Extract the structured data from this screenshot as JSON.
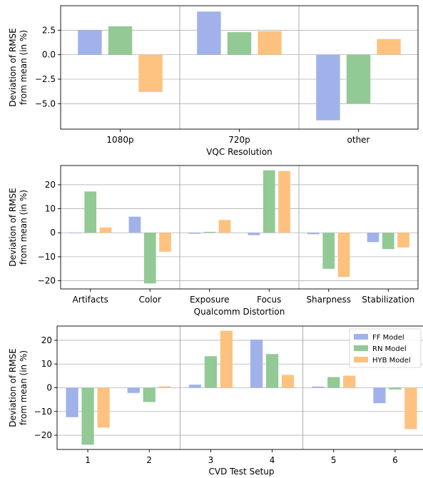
{
  "colors": {
    "ff": "#a1b1ea",
    "rn": "#92c995",
    "hyb": "#fdc27f",
    "grid": "#b0b0b0",
    "separator": "#999999",
    "axis": "#000000"
  },
  "chart_data": [
    {
      "type": "bar",
      "xlabel": "VQC Resolution",
      "ylabel": [
        "Deviation of RMSE",
        "from mean (in %)"
      ],
      "categories": [
        "1080p",
        "720p",
        "other"
      ],
      "series": [
        {
          "name": "FF Model",
          "color": "#a1b1ea",
          "values": [
            2.5,
            4.4,
            -6.7
          ]
        },
        {
          "name": "RN Model",
          "color": "#92c995",
          "values": [
            2.9,
            2.3,
            -5.0
          ]
        },
        {
          "name": "HYB Model",
          "color": "#fdc27f",
          "values": [
            -3.8,
            2.4,
            1.6
          ]
        }
      ],
      "ylim": [
        -7.6,
        5.0
      ],
      "yticks": [
        2.5,
        0.0,
        -2.5,
        -5.0
      ],
      "ytick_labels": [
        "2.5",
        "0.0",
        "−2.5",
        "−5.0"
      ],
      "grid": true
    },
    {
      "type": "bar",
      "xlabel": "Qualcomm Distortion",
      "ylabel": [
        "Deviation of RMSE",
        "from mean (in %)"
      ],
      "categories": [
        "Artifacts",
        "Color",
        "Exposure",
        "Focus",
        "Sharpness",
        "Stabilization"
      ],
      "series": [
        {
          "name": "FF Model",
          "color": "#a1b1ea",
          "values": [
            0.0,
            6.7,
            -0.4,
            -1.0,
            -0.6,
            -3.9
          ]
        },
        {
          "name": "RN Model",
          "color": "#92c995",
          "values": [
            17.2,
            -21.1,
            0.4,
            26.0,
            -15.0,
            -6.8
          ]
        },
        {
          "name": "HYB Model",
          "color": "#fdc27f",
          "values": [
            2.2,
            -7.9,
            5.3,
            25.7,
            -18.4,
            -6.1
          ]
        }
      ],
      "ylim": [
        -23.4,
        28.0
      ],
      "yticks": [
        20,
        10,
        0,
        -10,
        -20
      ],
      "ytick_labels": [
        "20",
        "10",
        "0",
        "−10",
        "−20"
      ],
      "grid": true
    },
    {
      "type": "bar",
      "xlabel": "CVD Test Setup",
      "ylabel": [
        "Deviation of RMSE",
        "from mean (in %)"
      ],
      "categories": [
        "1",
        "2",
        "3",
        "4",
        "5",
        "6"
      ],
      "series": [
        {
          "name": "FF Model",
          "color": "#a1b1ea",
          "values": [
            -12.4,
            -2.2,
            1.3,
            20.3,
            0.5,
            -6.5
          ]
        },
        {
          "name": "RN Model",
          "color": "#92c995",
          "values": [
            -24.0,
            -6.0,
            13.3,
            14.2,
            4.5,
            -0.7
          ]
        },
        {
          "name": "HYB Model",
          "color": "#fdc27f",
          "values": [
            -16.8,
            0.6,
            24.0,
            5.4,
            5.1,
            -17.4
          ]
        }
      ],
      "ylim": [
        -26.0,
        26.0
      ],
      "yticks": [
        20,
        10,
        0,
        -10,
        -20
      ],
      "ytick_labels": [
        "20",
        "10",
        "0",
        "−10",
        "−20"
      ],
      "legend": {
        "placement": "top-right",
        "entries": [
          "FF Model",
          "RN Model",
          "HYB Model"
        ]
      },
      "grid": true
    }
  ]
}
